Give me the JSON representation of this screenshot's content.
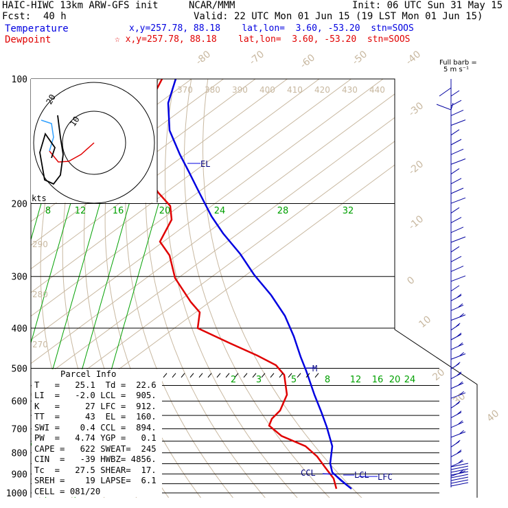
{
  "header": {
    "model": "HAIC-HIWC 13km ARW-GFS init",
    "org": "NCAR/MMM",
    "init": "Init: 06 UTC Sun 31 May 15",
    "fcst_label": "Fcst:",
    "fcst_value": "40 h",
    "valid": "Valid: 22 UTC Mon 01 Jun 15 (19 LST Mon 01 Jun 15)",
    "temp_label": "Temperature",
    "temp_info": "x,y=257.78, 88.18    lat,lon=  3.60, -53.20  stn=SOOS",
    "dew_label": "Dewpoint",
    "dew_info": "☆ x,y=257.78, 88.18    lat,lon=  3.60, -53.20  stn=SOOS",
    "barb_title": "Full barb =",
    "barb_units": "5 m s⁻¹"
  },
  "colors": {
    "temperature": "#0000e0",
    "dewpoint": "#e00000",
    "isotherm": "#c8b8a0",
    "mixing": "#00a000",
    "isobar": "#000000"
  },
  "chart_data": {
    "type": "line",
    "title": "",
    "y_axis": "pressure (hPa), log scale",
    "pressure_ticks": [
      100,
      200,
      300,
      400,
      500,
      600,
      700,
      800,
      900,
      1000
    ],
    "isotherm_labels": [
      "-80",
      "-70",
      "-60",
      "-50",
      "-40",
      "-30",
      "-20",
      "-10",
      "0",
      "10",
      "20",
      "30",
      "40"
    ],
    "theta_labels_top": [
      "370",
      "380",
      "390",
      "400",
      "410",
      "420",
      "430",
      "440"
    ],
    "theta_labels_left": [
      "290",
      "280",
      "270"
    ],
    "mixing_labels_upper": [
      "8",
      "12",
      "16",
      "20",
      "24",
      "28",
      "32"
    ],
    "mixing_labels_lower": [
      "2",
      "3",
      "5",
      "8",
      "12",
      "16",
      "20",
      "24"
    ],
    "series": [
      {
        "name": "Temperature",
        "points": [
          [
            100,
            -85.5
          ],
          [
            130,
            -84
          ],
          [
            160,
            -76
          ],
          [
            200,
            -62
          ],
          [
            250,
            -48
          ],
          [
            300,
            -36
          ],
          [
            350,
            -25
          ],
          [
            400,
            -16
          ],
          [
            450,
            -10.5
          ],
          [
            500,
            -5
          ],
          [
            550,
            -1
          ],
          [
            600,
            4
          ],
          [
            650,
            9
          ],
          [
            700,
            12.5
          ],
          [
            750,
            14
          ],
          [
            800,
            16
          ],
          [
            850,
            18.5
          ],
          [
            900,
            21
          ],
          [
            950,
            24
          ],
          [
            1000,
            25.1
          ]
        ]
      },
      {
        "name": "Dewpoint",
        "points": [
          [
            100,
            -87
          ],
          [
            110,
            -88
          ],
          [
            130,
            -94
          ],
          [
            160,
            -105
          ],
          [
            190,
            -102
          ],
          [
            200,
            -90
          ],
          [
            220,
            -93
          ],
          [
            250,
            -87
          ],
          [
            300,
            -67
          ],
          [
            350,
            -52
          ],
          [
            400,
            -48
          ],
          [
            430,
            -37
          ],
          [
            470,
            -23
          ],
          [
            500,
            -12
          ],
          [
            530,
            -6
          ],
          [
            570,
            -4
          ],
          [
            620,
            -9
          ],
          [
            680,
            -15
          ],
          [
            700,
            -12
          ],
          [
            750,
            6
          ],
          [
            800,
            13
          ],
          [
            850,
            16
          ],
          [
            900,
            18
          ],
          [
            950,
            20
          ],
          [
            1000,
            22.6
          ]
        ]
      }
    ],
    "markers": [
      {
        "label": "EL",
        "pressure": 160
      },
      {
        "label": "M",
        "pressure": 500
      },
      {
        "label": "CCL",
        "pressure": 894
      },
      {
        "label": "LCL",
        "pressure": 905
      },
      {
        "label": "LFC",
        "pressure": 912
      }
    ],
    "hodograph": {
      "units_label": "kts",
      "ring_labels": [
        "20",
        "10"
      ]
    },
    "parcel_info": {
      "title": "Parcel Info",
      "rows": [
        "T   =   25.1  Td =  22.6",
        "LI  =   -2.0 LCL =  905.",
        "K   =     27 LFC =  912.",
        "TT  =     43  EL =  160.",
        "SWI =    0.4 CCL =  894.",
        "PW  =   4.74 YGP =   0.1",
        "CAPE =   622 SWEAT=  245",
        "CIN  =   -39 HWBZ= 4856.",
        "Tc  =   27.5 SHEAR=  17.",
        "SREH =    19 LAPSE=  6.1",
        "CELL = 081/20"
      ]
    },
    "barb_directions": [
      [
        100,
        "wsw"
      ],
      [
        150,
        "e"
      ],
      [
        200,
        "e"
      ],
      [
        300,
        "e"
      ],
      [
        400,
        "e"
      ],
      [
        500,
        "e"
      ],
      [
        600,
        "e"
      ],
      [
        700,
        "e"
      ],
      [
        800,
        "e"
      ],
      [
        900,
        "e"
      ],
      [
        1000,
        "e"
      ]
    ]
  }
}
